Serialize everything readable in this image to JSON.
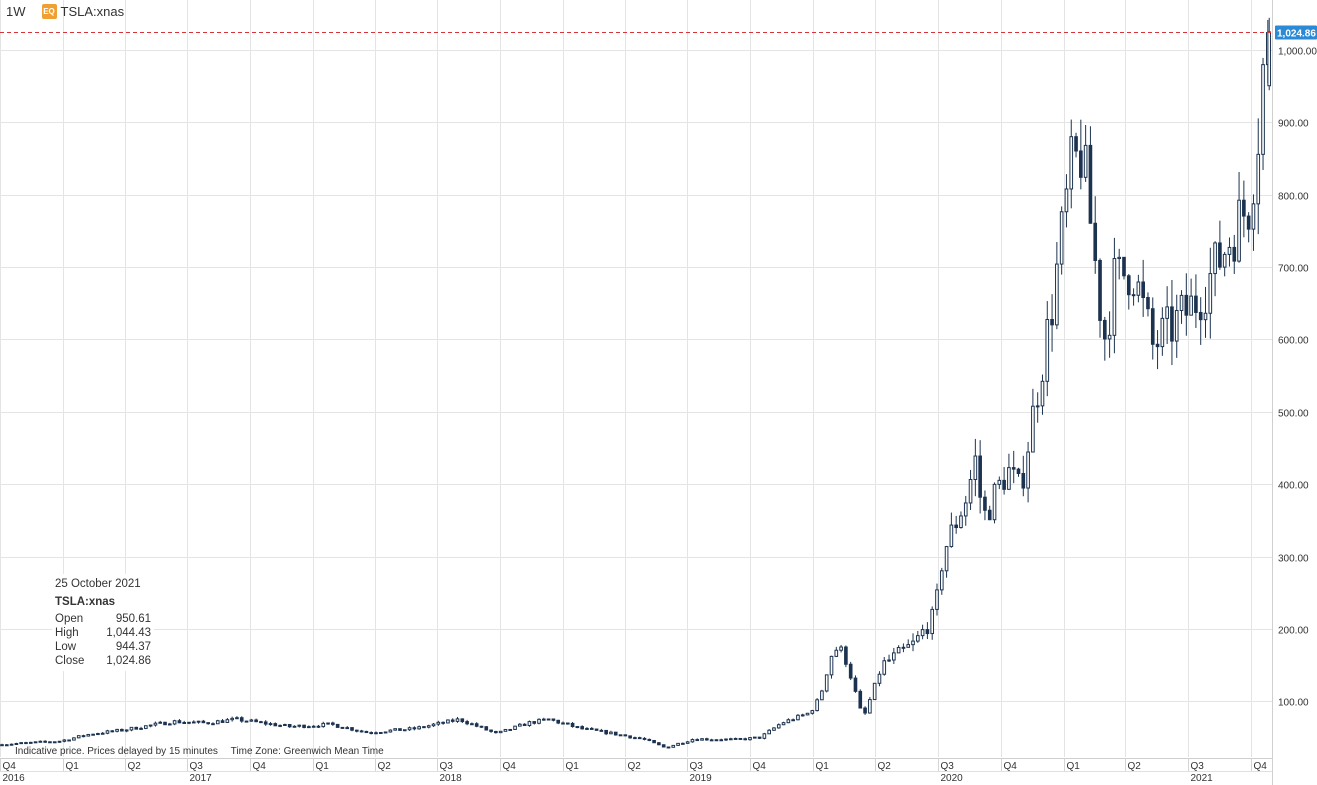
{
  "header": {
    "interval": "1W",
    "instrument_badge": "EQ",
    "symbol": "TSLA:xnas"
  },
  "info_box": {
    "date": "25 October 2021",
    "symbol": "TSLA:xnas",
    "rows": [
      {
        "label": "Open",
        "value": "950.61"
      },
      {
        "label": "High",
        "value": "1,044.43"
      },
      {
        "label": "Low",
        "value": "944.37"
      },
      {
        "label": "Close",
        "value": "1,024.86"
      }
    ]
  },
  "footnote": {
    "delay_notice": "Indicative price. Prices delayed by 15 minutes",
    "timezone": "Time Zone: Greenwich Mean Time"
  },
  "colors": {
    "up_fill": "#ffffff",
    "candle_outline": "#1c3350",
    "down_fill": "#1c3350",
    "grid": "#e4e4e4",
    "last_price_line": "#d9343b",
    "last_price_badge": "#2b8ad6"
  },
  "chart_data": {
    "type": "candlestick",
    "interval": "1W",
    "symbol": "TSLA:xnas",
    "last_price": 1024.86,
    "last_price_label": "1,024.86",
    "y_ticks": [
      {
        "value": 100,
        "label": "100.00"
      },
      {
        "value": 200,
        "label": "200.00"
      },
      {
        "value": 300,
        "label": "300.00"
      },
      {
        "value": 400,
        "label": "400.00"
      },
      {
        "value": 500,
        "label": "500.00"
      },
      {
        "value": 600,
        "label": "600.00"
      },
      {
        "value": 700,
        "label": "700.00"
      },
      {
        "value": 800,
        "label": "800.00"
      },
      {
        "value": 900,
        "label": "900.00"
      },
      {
        "value": 1000,
        "label": "1,000.00"
      }
    ],
    "ylim": [
      23,
      1058
    ],
    "x_quarters": [
      {
        "label": "Q4",
        "date": "2016-10-01"
      },
      {
        "label": "Q1",
        "date": "2017-01-01"
      },
      {
        "label": "Q2",
        "date": "2017-04-01"
      },
      {
        "label": "Q3",
        "date": "2017-07-01"
      },
      {
        "label": "Q4",
        "date": "2017-10-01"
      },
      {
        "label": "Q1",
        "date": "2018-01-01"
      },
      {
        "label": "Q2",
        "date": "2018-04-01"
      },
      {
        "label": "Q3",
        "date": "2018-07-01"
      },
      {
        "label": "Q4",
        "date": "2018-10-01"
      },
      {
        "label": "Q1",
        "date": "2019-01-01"
      },
      {
        "label": "Q2",
        "date": "2019-04-01"
      },
      {
        "label": "Q3",
        "date": "2019-07-01"
      },
      {
        "label": "Q4",
        "date": "2019-10-01"
      },
      {
        "label": "Q1",
        "date": "2020-01-01"
      },
      {
        "label": "Q2",
        "date": "2020-04-01"
      },
      {
        "label": "Q3",
        "date": "2020-07-01"
      },
      {
        "label": "Q4",
        "date": "2020-10-01"
      },
      {
        "label": "Q1",
        "date": "2021-01-01"
      },
      {
        "label": "Q2",
        "date": "2021-04-01"
      },
      {
        "label": "Q3",
        "date": "2021-07-01"
      },
      {
        "label": "Q4",
        "date": "2021-10-01"
      }
    ],
    "x_years": [
      {
        "label": "2016",
        "date": "2016-10-01"
      },
      {
        "label": "2017",
        "date": "2017-07-01"
      },
      {
        "label": "2018",
        "date": "2018-07-01"
      },
      {
        "label": "2019",
        "date": "2019-07-01"
      },
      {
        "label": "2020",
        "date": "2020-07-01"
      },
      {
        "label": "2021",
        "date": "2021-07-01"
      }
    ],
    "x_range": [
      "2016-10-01",
      "2021-11-01"
    ],
    "price_path": [
      [
        "2016-10-01",
        40
      ],
      [
        "2017-01-01",
        45
      ],
      [
        "2017-02-15",
        55
      ],
      [
        "2017-04-01",
        60
      ],
      [
        "2017-06-15",
        72
      ],
      [
        "2017-08-01",
        70
      ],
      [
        "2017-09-15",
        75
      ],
      [
        "2017-12-01",
        65
      ],
      [
        "2018-02-01",
        68
      ],
      [
        "2018-03-25",
        57
      ],
      [
        "2018-06-01",
        62
      ],
      [
        "2018-08-07",
        75
      ],
      [
        "2018-09-30",
        55
      ],
      [
        "2018-11-15",
        70
      ],
      [
        "2018-12-15",
        75
      ],
      [
        "2019-02-01",
        62
      ],
      [
        "2019-03-15",
        56
      ],
      [
        "2019-05-01",
        48
      ],
      [
        "2019-06-03",
        36
      ],
      [
        "2019-07-15",
        48
      ],
      [
        "2019-09-15",
        47
      ],
      [
        "2019-10-20",
        50
      ],
      [
        "2019-11-20",
        70
      ],
      [
        "2019-12-31",
        84
      ],
      [
        "2020-01-15",
        105
      ],
      [
        "2020-02-04",
        175
      ],
      [
        "2020-02-20",
        165
      ],
      [
        "2020-03-18",
        75
      ],
      [
        "2020-04-15",
        150
      ],
      [
        "2020-06-01",
        180
      ],
      [
        "2020-07-01",
        220
      ],
      [
        "2020-07-13",
        305
      ],
      [
        "2020-08-15",
        380
      ],
      [
        "2020-08-31",
        440
      ],
      [
        "2020-09-08",
        350
      ],
      [
        "2020-10-15",
        420
      ],
      [
        "2020-11-02",
        390
      ],
      [
        "2020-11-20",
        490
      ],
      [
        "2020-12-18",
        640
      ],
      [
        "2021-01-15",
        830
      ],
      [
        "2021-02-01",
        860
      ],
      [
        "2021-03-05",
        600
      ],
      [
        "2021-03-20",
        680
      ],
      [
        "2021-04-15",
        700
      ],
      [
        "2021-05-15",
        590
      ],
      [
        "2021-06-15",
        620
      ],
      [
        "2021-07-15",
        650
      ],
      [
        "2021-08-15",
        700
      ],
      [
        "2021-09-15",
        760
      ],
      [
        "2021-10-04",
        790
      ],
      [
        "2021-10-11",
        850
      ],
      [
        "2021-10-18",
        905
      ],
      [
        "2021-10-25",
        1000
      ]
    ],
    "last_candle": {
      "date": "2021-10-25",
      "open": 950.61,
      "high": 1044.43,
      "low": 944.37,
      "close": 1024.86
    }
  }
}
